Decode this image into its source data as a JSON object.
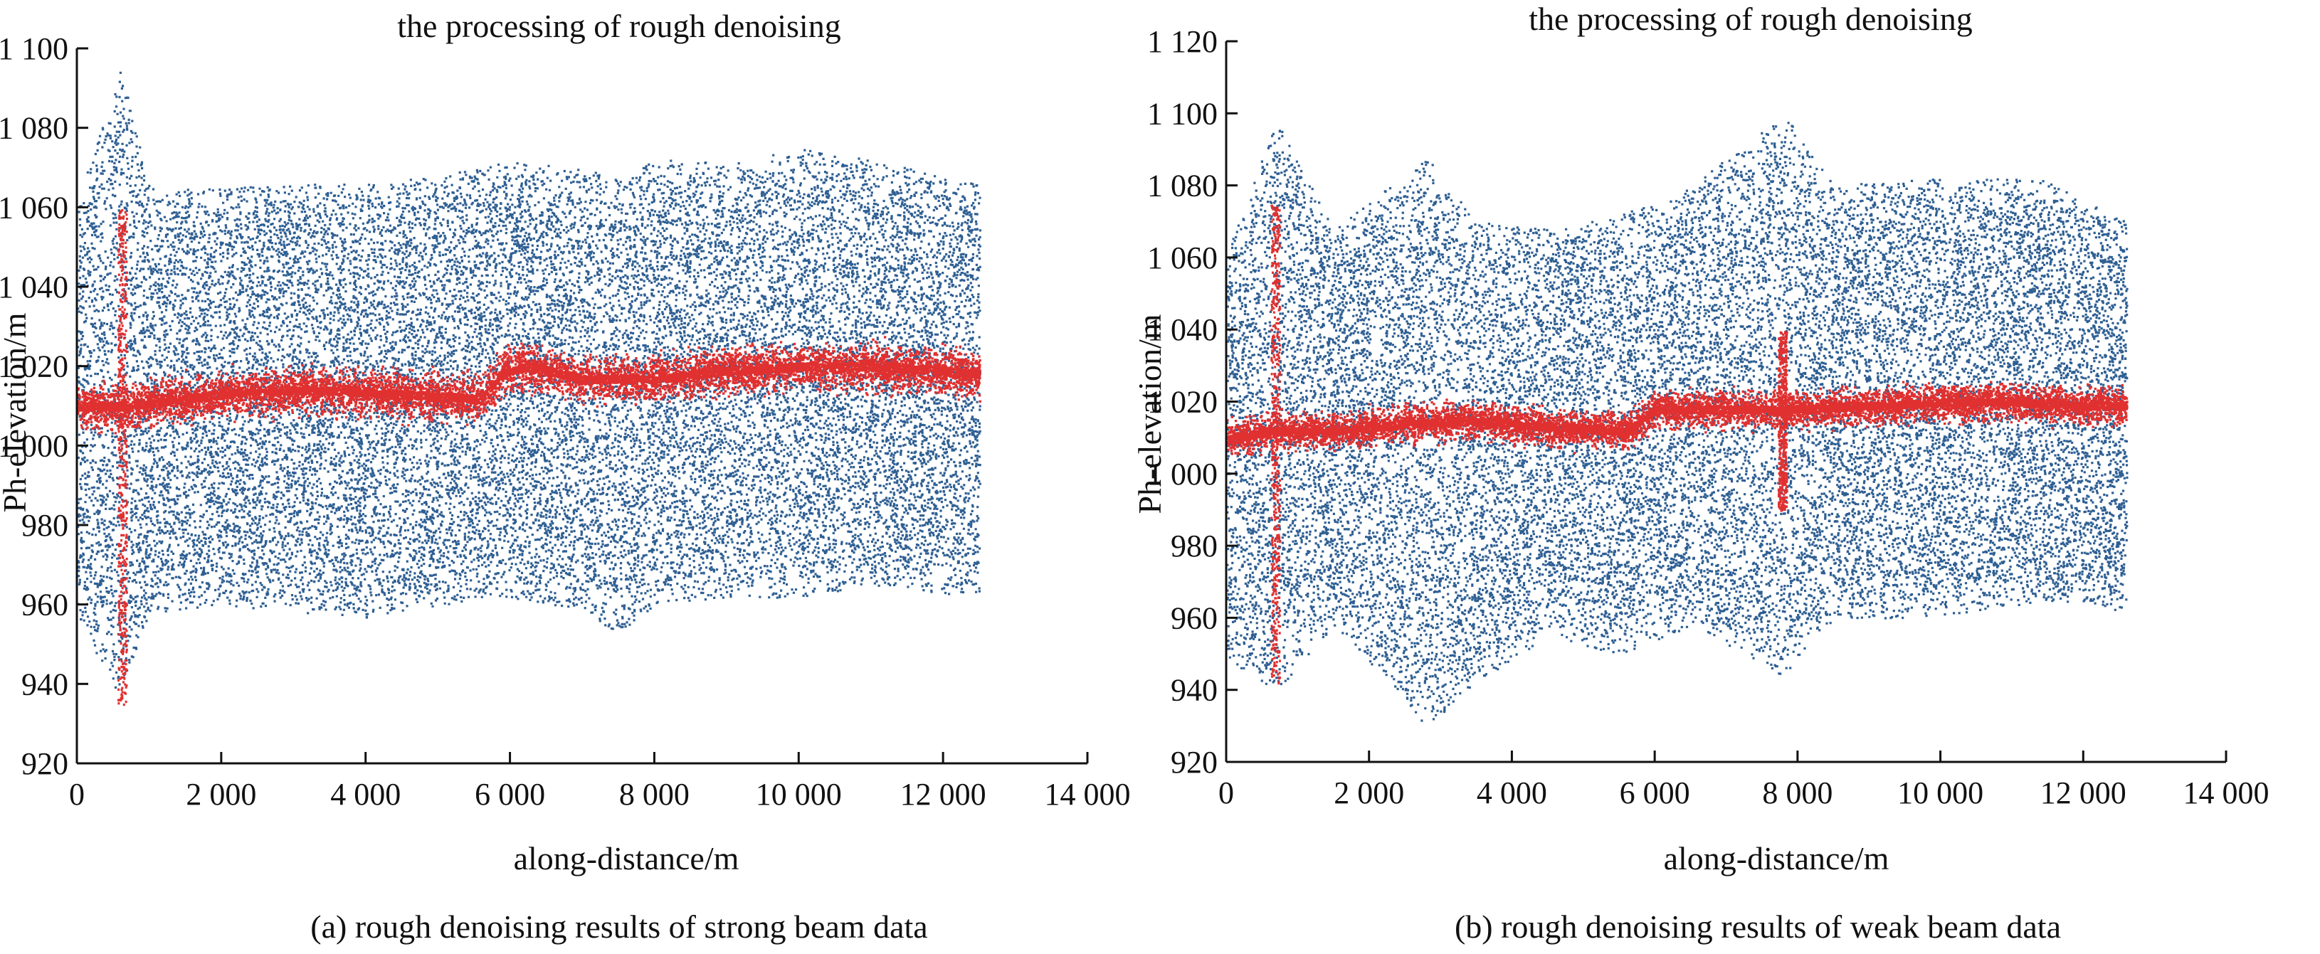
{
  "chart_data": [
    {
      "type": "scatter",
      "title": "the processing of rough denoising",
      "caption": "(a) rough denoising results of strong beam data",
      "xlabel": "along-distance/m",
      "ylabel": "Ph-elevation/m",
      "xlim": [
        0,
        14000
      ],
      "ylim": [
        920,
        1100
      ],
      "x_ticks": [
        0,
        2000,
        4000,
        6000,
        8000,
        10000,
        12000,
        14000
      ],
      "x_tick_labels": [
        "0",
        "2 000",
        "4 000",
        "6 000",
        "8 000",
        "10 000",
        "12 000",
        "14 000"
      ],
      "y_ticks": [
        920,
        940,
        960,
        980,
        1000,
        1020,
        1040,
        1060,
        1080,
        1100
      ],
      "y_tick_labels": [
        "920",
        "940",
        "960",
        "980",
        "1 000",
        "1 020",
        "1 040",
        "1 060",
        "1 080",
        "1 100"
      ],
      "grid": false,
      "series": [
        {
          "color": "#2e5f93",
          "x_range": [
            0,
            12500
          ],
          "band": [
            [
              0,
              958,
              1062
            ],
            [
              600,
              935,
              1095
            ],
            [
              1000,
              958,
              1065
            ],
            [
              2000,
              960,
              1065
            ],
            [
              3000,
              958,
              1066
            ],
            [
              4000,
              957,
              1066
            ],
            [
              5000,
              960,
              1068
            ],
            [
              6000,
              962,
              1072
            ],
            [
              7000,
              958,
              1070
            ],
            [
              7500,
              953,
              1068
            ],
            [
              8000,
              960,
              1072
            ],
            [
              9000,
              962,
              1072
            ],
            [
              10000,
              962,
              1075
            ],
            [
              11000,
              965,
              1072
            ],
            [
              12000,
              963,
              1068
            ],
            [
              12500,
              962,
              1066
            ]
          ]
        },
        {
          "color": "#e03030",
          "x_range": [
            0,
            12500
          ],
          "centerline": [
            [
              0,
              1010
            ],
            [
              600,
              1010
            ],
            [
              1500,
              1012
            ],
            [
              2500,
              1014
            ],
            [
              3500,
              1014
            ],
            [
              4500,
              1013
            ],
            [
              5600,
              1012
            ],
            [
              5900,
              1019
            ],
            [
              6300,
              1020
            ],
            [
              7000,
              1017
            ],
            [
              8000,
              1017
            ],
            [
              9000,
              1019
            ],
            [
              10000,
              1020
            ],
            [
              11000,
              1020
            ],
            [
              12000,
              1019
            ],
            [
              12500,
              1018
            ]
          ],
          "spread": 8,
          "spike": {
            "x": 620,
            "ymin": 935,
            "ymax": 1060
          }
        }
      ]
    },
    {
      "type": "scatter",
      "title": "the processing of rough denoising",
      "caption": "(b) rough denoising results of weak beam data",
      "xlabel": "along-distance/m",
      "ylabel": "Ph-elevation/m",
      "xlim": [
        0,
        14000
      ],
      "ylim": [
        920,
        1120
      ],
      "x_ticks": [
        0,
        2000,
        4000,
        6000,
        8000,
        10000,
        12000,
        14000
      ],
      "x_tick_labels": [
        "0",
        "2 000",
        "4 000",
        "6 000",
        "8 000",
        "10 000",
        "12 000",
        "14 000"
      ],
      "y_ticks": [
        920,
        940,
        960,
        980,
        1000,
        1020,
        1040,
        1060,
        1080,
        1100,
        1120
      ],
      "y_tick_labels": [
        "920",
        "940",
        "960",
        "980",
        "1 000",
        "1 020",
        "1 040",
        "1 060",
        "1 080",
        "1 100",
        "1 120"
      ],
      "grid": false,
      "series": [
        {
          "color": "#2e5f93",
          "x_range": [
            0,
            12600
          ],
          "band": [
            [
              0,
              948,
              1062
            ],
            [
              700,
              940,
              1098
            ],
            [
              1500,
              958,
              1068
            ],
            [
              2800,
              930,
              1088
            ],
            [
              3500,
              942,
              1070
            ],
            [
              4500,
              955,
              1068
            ],
            [
              5500,
              950,
              1072
            ],
            [
              6500,
              958,
              1080
            ],
            [
              7800,
              944,
              1100
            ],
            [
              8500,
              960,
              1080
            ],
            [
              9500,
              960,
              1082
            ],
            [
              10500,
              962,
              1082
            ],
            [
              11500,
              965,
              1082
            ],
            [
              12600,
              962,
              1070
            ]
          ]
        },
        {
          "color": "#e03030",
          "x_range": [
            0,
            12600
          ],
          "centerline": [
            [
              0,
              1010
            ],
            [
              700,
              1012
            ],
            [
              1500,
              1012
            ],
            [
              2500,
              1014
            ],
            [
              3500,
              1015
            ],
            [
              4500,
              1013
            ],
            [
              5600,
              1012
            ],
            [
              6000,
              1018
            ],
            [
              7000,
              1018
            ],
            [
              7800,
              1018
            ],
            [
              9000,
              1019
            ],
            [
              10000,
              1020
            ],
            [
              11000,
              1020
            ],
            [
              12000,
              1019
            ],
            [
              12600,
              1019
            ]
          ],
          "spread": 7,
          "spike": {
            "x": 680,
            "ymin": 942,
            "ymax": 1075
          },
          "spike2": {
            "x": 7780,
            "ymin": 990,
            "ymax": 1040
          }
        }
      ]
    }
  ]
}
